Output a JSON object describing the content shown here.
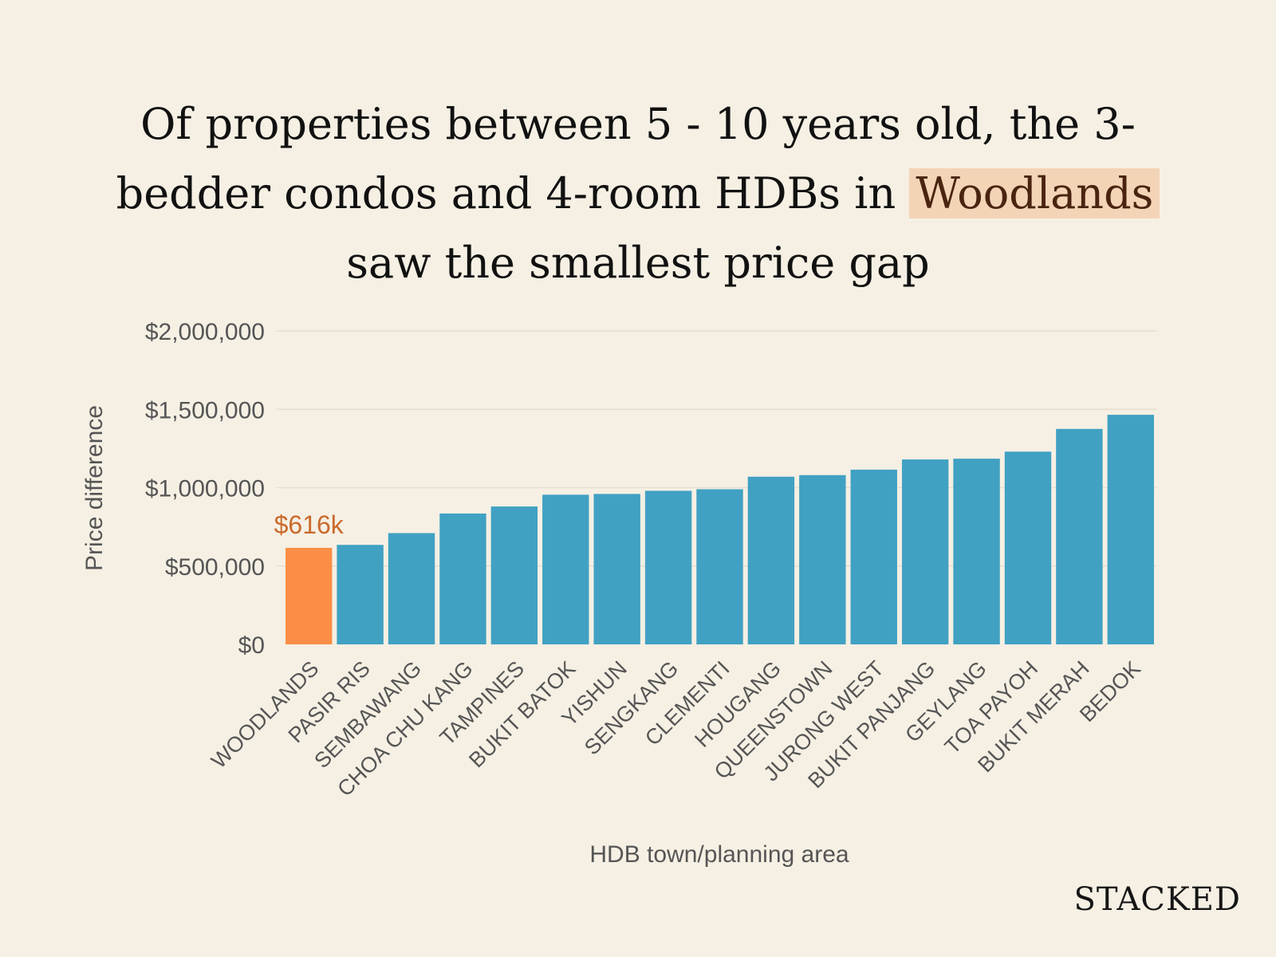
{
  "title": {
    "line1": "Of properties between 5 - 10 years old, the 3-",
    "line2_pre": "bedder condos and 4-room HDBs in",
    "line2_highlight": "Woodlands",
    "line3": "saw the smallest price gap"
  },
  "brand": "STACKED",
  "colors": {
    "background": "#f6f0e4",
    "bar": "#41a1c3",
    "highlight_bar": "#fa8e48",
    "highlight_label": "#c96a2c",
    "axis_text": "#555555",
    "grid": "#e4ddd0"
  },
  "chart_data": {
    "type": "bar",
    "xlabel": "HDB town/planning area",
    "ylabel": "Price difference",
    "ylim": [
      0,
      2000000
    ],
    "yticks": [
      0,
      500000,
      1000000,
      1500000,
      2000000
    ],
    "ytick_labels": [
      "$0",
      "$500,000",
      "$1,000,000",
      "$1,500,000",
      "$2,000,000"
    ],
    "grid": true,
    "categories": [
      "WOODLANDS",
      "PASIR RIS",
      "SEMBAWANG",
      "CHOA CHU KANG",
      "TAMPINES",
      "BUKIT BATOK",
      "YISHUN",
      "SENGKANG",
      "CLEMENTI",
      "HOUGANG",
      "QUEENSTOWN",
      "JURONG WEST",
      "BUKIT PANJANG",
      "GEYLANG",
      "TOA PAYOH",
      "BUKIT MERAH",
      "BEDOK"
    ],
    "values": [
      616000,
      635000,
      710000,
      835000,
      880000,
      955000,
      960000,
      980000,
      990000,
      1070000,
      1080000,
      1115000,
      1180000,
      1185000,
      1230000,
      1375000,
      1465000
    ],
    "highlight_index": 0,
    "annotations": [
      {
        "category": "WOODLANDS",
        "text": "$616k"
      }
    ]
  }
}
